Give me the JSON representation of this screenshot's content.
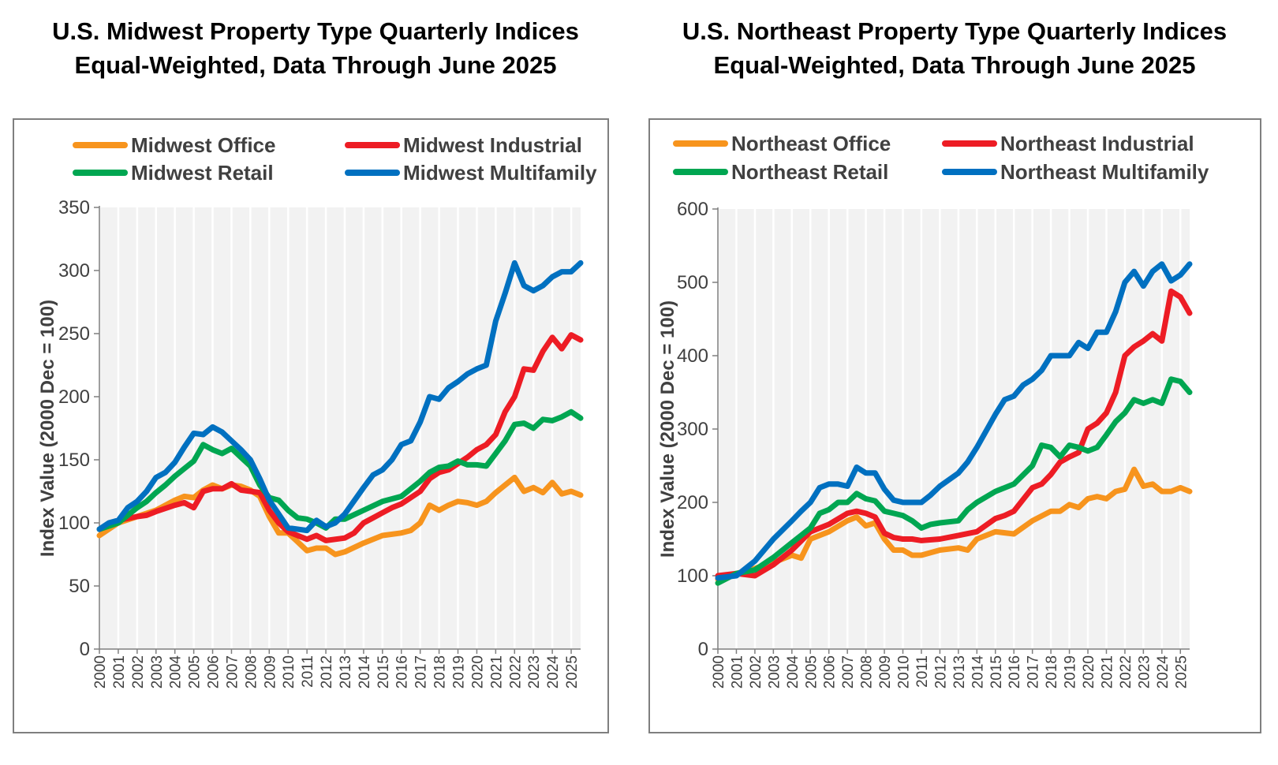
{
  "chart_data": [
    {
      "type": "line",
      "title": "U.S. Midwest Property Type Quarterly Indices",
      "subtitle": "Equal-Weighted, Data Through June 2025",
      "ylabel": "Index Value (2000 Dec = 100)",
      "xlabel": "",
      "ylim": [
        0,
        350
      ],
      "yticks": [
        0,
        50,
        100,
        150,
        200,
        250,
        300,
        350
      ],
      "xticks": [
        "2000",
        "2001",
        "2002",
        "2003",
        "2004",
        "2005",
        "2006",
        "2007",
        "2008",
        "2009",
        "2010",
        "2011",
        "2012",
        "2013",
        "2014",
        "2015",
        "2016",
        "2017",
        "2018",
        "2019",
        "2020",
        "2021",
        "2022",
        "2023",
        "2024",
        "2025"
      ],
      "xlim": [
        2000.0,
        2025.5
      ],
      "grid": "vertical",
      "legend": "top",
      "series": [
        {
          "name": "Midwest Office",
          "color": "#F7941D",
          "x": [
            2000.0,
            2001.0,
            2002.0,
            2003.0,
            2004.0,
            2004.5,
            2005.0,
            2005.5,
            2006.0,
            2006.5,
            2007.0,
            2007.5,
            2008.0,
            2008.5,
            2009.0,
            2009.5,
            2010.0,
            2010.5,
            2011.0,
            2011.5,
            2012.0,
            2012.5,
            2013.0,
            2014.0,
            2015.0,
            2016.0,
            2016.5,
            2017.0,
            2017.5,
            2018.0,
            2018.5,
            2019.0,
            2019.5,
            2020.0,
            2020.5,
            2021.0,
            2021.5,
            2022.0,
            2022.5,
            2023.0,
            2023.5,
            2024.0,
            2024.5,
            2025.0,
            2025.5
          ],
          "values": [
            90,
            100,
            105,
            110,
            118,
            121,
            120,
            126,
            130,
            127,
            130,
            129,
            126,
            121,
            105,
            92,
            92,
            85,
            78,
            80,
            80,
            75,
            77,
            84,
            90,
            92,
            94,
            100,
            114,
            110,
            114,
            117,
            116,
            114,
            117,
            124,
            130,
            136,
            125,
            128,
            124,
            132,
            123,
            125,
            122
          ]
        },
        {
          "name": "Midwest Industrial",
          "color": "#ED1C24",
          "x": [
            2000.0,
            2001.0,
            2002.0,
            2002.5,
            2003.0,
            2004.0,
            2004.5,
            2005.0,
            2005.5,
            2006.0,
            2006.5,
            2007.0,
            2007.5,
            2008.0,
            2008.5,
            2009.0,
            2009.5,
            2010.0,
            2010.5,
            2011.0,
            2011.5,
            2012.0,
            2013.0,
            2013.5,
            2014.0,
            2014.5,
            2015.0,
            2015.5,
            2016.0,
            2016.5,
            2017.0,
            2017.5,
            2018.0,
            2018.5,
            2019.0,
            2019.5,
            2020.0,
            2020.5,
            2021.0,
            2021.5,
            2022.0,
            2022.5,
            2023.0,
            2023.5,
            2024.0,
            2024.5,
            2025.0,
            2025.5
          ],
          "values": [
            95,
            102,
            105,
            106,
            109,
            114,
            116,
            112,
            125,
            127,
            127,
            131,
            126,
            125,
            124,
            110,
            100,
            93,
            90,
            87,
            90,
            86,
            88,
            92,
            100,
            104,
            108,
            112,
            115,
            120,
            125,
            135,
            140,
            142,
            147,
            152,
            158,
            162,
            170,
            188,
            200,
            222,
            221,
            236,
            247,
            238,
            249,
            245
          ]
        },
        {
          "name": "Midwest Retail",
          "color": "#00A651",
          "x": [
            2000.0,
            2001.0,
            2002.0,
            2002.5,
            2003.0,
            2003.5,
            2004.0,
            2004.5,
            2005.0,
            2005.5,
            2006.0,
            2006.5,
            2007.0,
            2007.5,
            2008.0,
            2008.5,
            2009.0,
            2009.5,
            2010.0,
            2010.5,
            2011.0,
            2011.5,
            2012.0,
            2012.5,
            2013.0,
            2014.0,
            2015.0,
            2016.0,
            2016.5,
            2017.0,
            2017.5,
            2018.0,
            2018.5,
            2019.0,
            2019.5,
            2020.0,
            2020.5,
            2021.0,
            2021.5,
            2022.0,
            2022.5,
            2023.0,
            2023.5,
            2024.0,
            2024.5,
            2025.0,
            2025.5
          ],
          "values": [
            95,
            100,
            112,
            117,
            124,
            130,
            137,
            143,
            149,
            162,
            158,
            155,
            159,
            152,
            145,
            130,
            120,
            118,
            110,
            104,
            103,
            100,
            96,
            103,
            103,
            110,
            117,
            121,
            127,
            133,
            140,
            144,
            145,
            149,
            146,
            146,
            145,
            155,
            165,
            178,
            179,
            175,
            182,
            181,
            184,
            188,
            183
          ]
        },
        {
          "name": "Midwest Multifamily",
          "color": "#0070C0",
          "x": [
            2000.0,
            2000.5,
            2001.0,
            2001.5,
            2002.0,
            2002.5,
            2003.0,
            2003.5,
            2004.0,
            2004.5,
            2005.0,
            2005.5,
            2006.0,
            2006.5,
            2007.0,
            2007.5,
            2008.0,
            2008.5,
            2009.0,
            2009.5,
            2010.0,
            2010.5,
            2011.0,
            2011.5,
            2012.0,
            2012.5,
            2013.0,
            2014.0,
            2014.5,
            2015.0,
            2015.5,
            2016.0,
            2016.5,
            2017.0,
            2017.5,
            2018.0,
            2018.5,
            2019.0,
            2019.5,
            2020.0,
            2020.5,
            2021.0,
            2021.5,
            2022.0,
            2022.5,
            2023.0,
            2023.5,
            2024.0,
            2024.5,
            2025.0,
            2025.5
          ],
          "values": [
            95,
            100,
            102,
            112,
            117,
            125,
            136,
            140,
            148,
            160,
            171,
            170,
            176,
            172,
            165,
            158,
            150,
            135,
            118,
            107,
            96,
            95,
            94,
            102,
            97,
            100,
            107,
            128,
            138,
            142,
            150,
            162,
            165,
            180,
            200,
            198,
            207,
            212,
            218,
            222,
            225,
            260,
            282,
            306,
            288,
            284,
            288,
            295,
            299,
            299,
            306
          ]
        }
      ]
    },
    {
      "type": "line",
      "title": "U.S. Northeast Property Type Quarterly Indices",
      "subtitle": "Equal-Weighted, Data Through June 2025",
      "ylabel": "Index Value (2000 Dec = 100)",
      "xlabel": "",
      "ylim": [
        0,
        600
      ],
      "yticks": [
        0,
        100,
        200,
        300,
        400,
        500,
        600
      ],
      "xticks": [
        "2000",
        "2001",
        "2002",
        "2003",
        "2004",
        "2005",
        "2006",
        "2007",
        "2008",
        "2009",
        "2010",
        "2011",
        "2012",
        "2013",
        "2014",
        "2015",
        "2016",
        "2017",
        "2018",
        "2019",
        "2020",
        "2021",
        "2022",
        "2023",
        "2024",
        "2025"
      ],
      "xlim": [
        2000.0,
        2025.5
      ],
      "grid": "vertical",
      "legend": "top",
      "series": [
        {
          "name": "Northeast Office",
          "color": "#F7941D",
          "x": [
            2000.0,
            2001.0,
            2002.0,
            2003.0,
            2004.0,
            2004.5,
            2005.0,
            2006.0,
            2007.0,
            2007.5,
            2008.0,
            2008.5,
            2009.0,
            2009.5,
            2010.0,
            2010.5,
            2011.0,
            2012.0,
            2013.0,
            2013.5,
            2014.0,
            2015.0,
            2016.0,
            2017.0,
            2018.0,
            2018.5,
            2019.0,
            2019.5,
            2020.0,
            2020.5,
            2021.0,
            2021.5,
            2022.0,
            2022.5,
            2023.0,
            2023.5,
            2024.0,
            2024.5,
            2025.0,
            2025.5
          ],
          "values": [
            95,
            103,
            110,
            118,
            128,
            124,
            150,
            160,
            175,
            180,
            168,
            172,
            150,
            135,
            135,
            128,
            128,
            135,
            138,
            135,
            150,
            160,
            157,
            175,
            188,
            188,
            197,
            193,
            205,
            208,
            205,
            215,
            218,
            245,
            222,
            225,
            215,
            215,
            220,
            215
          ]
        },
        {
          "name": "Northeast Industrial",
          "color": "#ED1C24",
          "x": [
            2000.0,
            2001.0,
            2002.0,
            2003.0,
            2004.0,
            2005.0,
            2006.0,
            2007.0,
            2007.5,
            2008.0,
            2008.5,
            2009.0,
            2009.5,
            2010.0,
            2010.5,
            2011.0,
            2012.0,
            2013.0,
            2014.0,
            2015.0,
            2015.5,
            2016.0,
            2017.0,
            2017.5,
            2018.0,
            2018.5,
            2019.0,
            2019.5,
            2020.0,
            2020.5,
            2021.0,
            2021.5,
            2022.0,
            2022.5,
            2023.0,
            2023.5,
            2024.0,
            2024.5,
            2025.0,
            2025.5
          ],
          "values": [
            100,
            103,
            100,
            115,
            135,
            160,
            170,
            185,
            188,
            185,
            180,
            158,
            152,
            150,
            150,
            148,
            150,
            155,
            160,
            178,
            182,
            188,
            220,
            225,
            238,
            255,
            262,
            268,
            300,
            308,
            322,
            350,
            400,
            412,
            420,
            430,
            420,
            488,
            480,
            458
          ]
        },
        {
          "name": "Northeast Retail",
          "color": "#00A651",
          "x": [
            2000.0,
            2001.0,
            2002.0,
            2003.0,
            2004.0,
            2005.0,
            2005.5,
            2006.0,
            2006.5,
            2007.0,
            2007.5,
            2008.0,
            2008.5,
            2009.0,
            2009.5,
            2010.0,
            2010.5,
            2011.0,
            2011.5,
            2012.0,
            2013.0,
            2013.5,
            2014.0,
            2015.0,
            2016.0,
            2017.0,
            2017.5,
            2018.0,
            2018.5,
            2019.0,
            2019.5,
            2020.0,
            2020.5,
            2021.0,
            2021.5,
            2022.0,
            2022.5,
            2023.0,
            2023.5,
            2024.0,
            2024.5,
            2025.0,
            2025.5
          ],
          "values": [
            90,
            103,
            108,
            125,
            145,
            165,
            185,
            190,
            200,
            200,
            212,
            205,
            202,
            188,
            185,
            182,
            175,
            165,
            170,
            172,
            175,
            190,
            200,
            215,
            225,
            250,
            278,
            275,
            262,
            278,
            275,
            270,
            275,
            292,
            310,
            322,
            340,
            335,
            340,
            335,
            368,
            365,
            350
          ]
        },
        {
          "name": "Northeast Multifamily",
          "color": "#0070C0",
          "x": [
            2000.0,
            2001.0,
            2002.0,
            2003.0,
            2004.0,
            2004.5,
            2005.0,
            2005.5,
            2006.0,
            2006.5,
            2007.0,
            2007.5,
            2008.0,
            2008.5,
            2009.0,
            2009.5,
            2010.0,
            2011.0,
            2011.5,
            2012.0,
            2013.0,
            2013.5,
            2014.0,
            2015.0,
            2015.5,
            2016.0,
            2016.5,
            2017.0,
            2017.5,
            2018.0,
            2019.0,
            2019.5,
            2020.0,
            2020.5,
            2021.0,
            2021.5,
            2022.0,
            2022.5,
            2023.0,
            2023.5,
            2024.0,
            2024.5,
            2025.0,
            2025.5
          ],
          "values": [
            97,
            100,
            120,
            150,
            175,
            188,
            200,
            220,
            225,
            225,
            222,
            248,
            240,
            240,
            218,
            203,
            200,
            200,
            210,
            222,
            240,
            255,
            275,
            320,
            340,
            345,
            360,
            368,
            380,
            400,
            400,
            418,
            410,
            432,
            432,
            460,
            500,
            515,
            495,
            515,
            525,
            502,
            510,
            525
          ]
        }
      ]
    }
  ]
}
